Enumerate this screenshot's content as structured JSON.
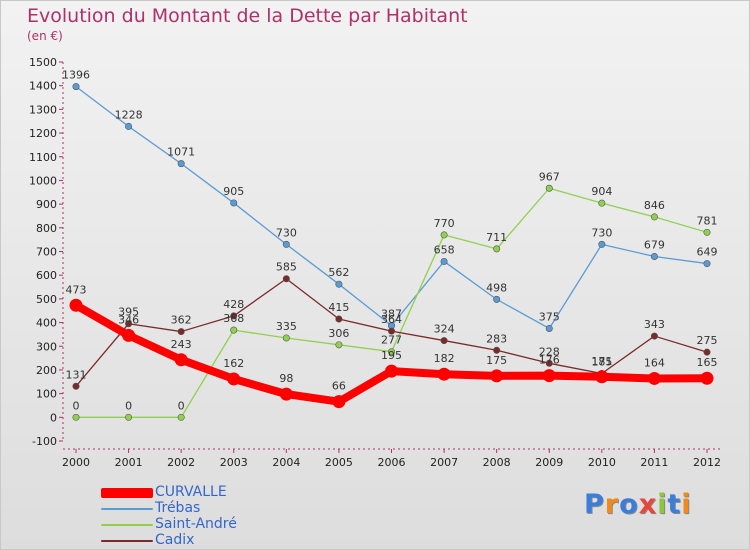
{
  "header": {
    "title": "Evolution du Montant de la Dette par Habitant",
    "subtitle": "(en €)"
  },
  "chart_data": {
    "type": "line",
    "title": "Evolution du Montant de la Dette par Habitant",
    "subtitle": "(en €)",
    "xlabel": "",
    "ylabel": "",
    "x": [
      "2000",
      "2001",
      "2002",
      "2003",
      "2004",
      "2005",
      "2006",
      "2007",
      "2008",
      "2009",
      "2010",
      "2011",
      "2012"
    ],
    "yticks": [
      "-100",
      "0",
      "100",
      "200",
      "300",
      "400",
      "500",
      "600",
      "700",
      "800",
      "900",
      "1000",
      "1100",
      "1200",
      "1300",
      "1400",
      "1500"
    ],
    "ylim": [
      -100,
      1500
    ],
    "grid": false,
    "legend_position": "bottom-left",
    "series": [
      {
        "name": "CURVALLE",
        "color": "#ff0000",
        "values": [
          473,
          346,
          243,
          162,
          98,
          66,
          195,
          182,
          175,
          176,
          171,
          164,
          165
        ]
      },
      {
        "name": "Trébas",
        "color": "#5b9bd5",
        "values": [
          1396,
          1228,
          1071,
          905,
          730,
          562,
          387,
          658,
          498,
          375,
          730,
          679,
          649
        ]
      },
      {
        "name": "Saint-André",
        "color": "#8fd14f",
        "values": [
          0,
          0,
          0,
          368,
          335,
          306,
          277,
          770,
          711,
          967,
          904,
          846,
          781
        ]
      },
      {
        "name": "Cadix",
        "color": "#7b2a2a",
        "values": [
          131,
          395,
          362,
          428,
          585,
          415,
          364,
          324,
          283,
          228,
          185,
          343,
          275
        ]
      }
    ]
  },
  "legend": {
    "items": [
      {
        "label": "CURVALLE",
        "color": "#ff0000"
      },
      {
        "label": "Trébas",
        "color": "#5b9bd5"
      },
      {
        "label": "Saint-André",
        "color": "#8fd14f"
      },
      {
        "label": "Cadix",
        "color": "#7b2a2a"
      }
    ]
  },
  "logo": {
    "letters": [
      "P",
      "r",
      "o",
      "x",
      "i",
      "t",
      "i"
    ],
    "colors": [
      "#3b7dd8",
      "#f08a1c",
      "#3b7dd8",
      "#e8463a",
      "#8cc63f",
      "#3b7dd8",
      "#f08a1c"
    ]
  }
}
